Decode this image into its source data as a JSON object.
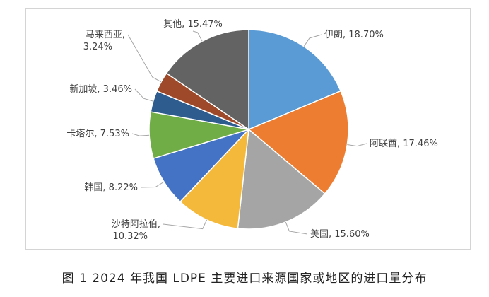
{
  "caption": "图 1 2024 年我国 LDPE 主要进口来源国家或地区的进口量分布",
  "chart_data": {
    "type": "pie",
    "title": "",
    "slices": [
      {
        "name": "伊朗",
        "value": 18.7,
        "label": "伊朗, 18.70%",
        "color": "#5b9bd5"
      },
      {
        "name": "阿联酋",
        "value": 17.46,
        "label": "阿联酋, 17.46%",
        "color": "#ed7d31"
      },
      {
        "name": "美国",
        "value": 15.6,
        "label": "美国, 15.60%",
        "color": "#a5a5a5"
      },
      {
        "name": "沙特阿拉伯",
        "value": 10.32,
        "label": "沙特阿拉伯,|10.32%",
        "color": "#f4b93a"
      },
      {
        "name": "韩国",
        "value": 8.22,
        "label": "韩国, 8.22%",
        "color": "#4472c4"
      },
      {
        "name": "卡塔尔",
        "value": 7.53,
        "label": "卡塔尔, 7.53%",
        "color": "#70ad47"
      },
      {
        "name": "新加坡",
        "value": 3.46,
        "label": "新加坡, 3.46%",
        "color": "#2e5c8f"
      },
      {
        "name": "马来西亚",
        "value": 3.24,
        "label": "马来西亚,|3.24%",
        "color": "#9e4a2a"
      },
      {
        "name": "其他",
        "value": 15.47,
        "label": "其他, 15.47%",
        "color": "#636363"
      }
    ]
  }
}
